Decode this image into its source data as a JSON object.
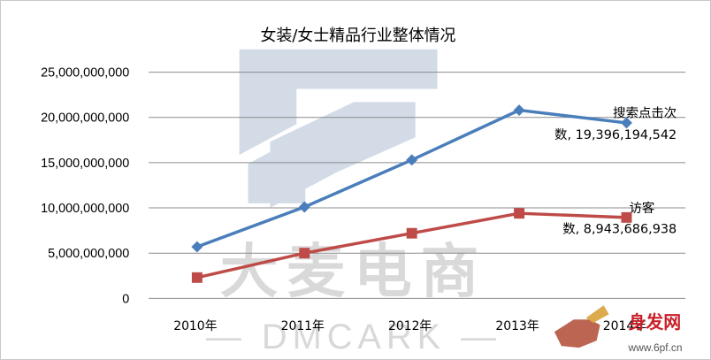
{
  "chart_data": {
    "type": "line",
    "title": "女装/女士精品行业整体情况",
    "categories": [
      "2010年",
      "2011年",
      "2012年",
      "2013年",
      "2014年"
    ],
    "ylim": [
      0,
      25000000000
    ],
    "yticks": [
      "0",
      "5,000,000,000",
      "10,000,000,000",
      "15,000,000,000",
      "20,000,000,000",
      "25,000,000,000"
    ],
    "ytick_values": [
      0,
      5000000000,
      10000000000,
      15000000000,
      20000000000,
      25000000000
    ],
    "grid": true,
    "series": [
      {
        "name": "搜索点击次数",
        "color": "#4a7ebb",
        "marker": "diamond",
        "values": [
          5700000000,
          10100000000,
          15300000000,
          20800000000,
          19396194542
        ],
        "label_line1": "搜索点击次",
        "label_line2": "数, 19,396,194,542"
      },
      {
        "name": "访客数",
        "color": "#be4b48",
        "marker": "square",
        "values": [
          2300000000,
          5000000000,
          7200000000,
          9400000000,
          8943686938
        ],
        "label_line1": "访客",
        "label_line2": "数, 8,943,686,938"
      }
    ]
  },
  "watermark": {
    "brand_cn": "大麦电商",
    "brand_en": "— DMCARK —",
    "logo_text": "身发网",
    "logo_url_text": "www.6pf.cn"
  }
}
